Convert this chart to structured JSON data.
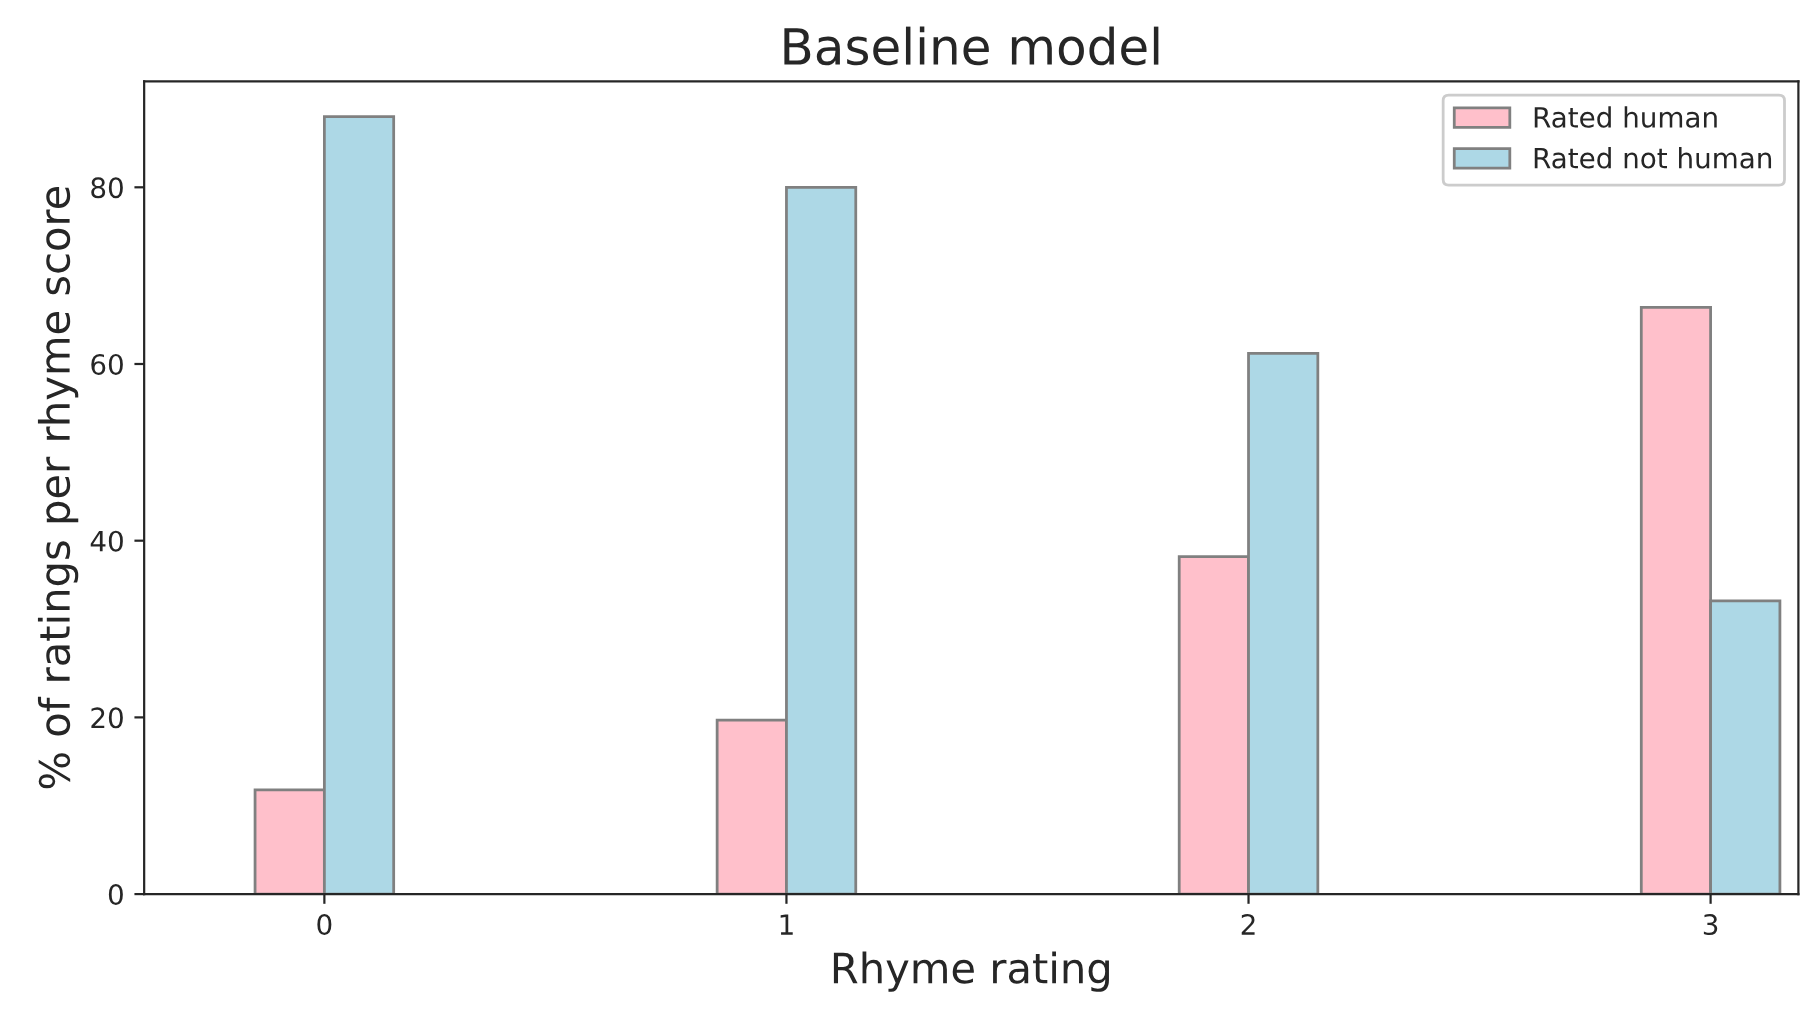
{
  "chart_data": {
    "type": "bar",
    "title": "Baseline model",
    "xlabel": "Rhyme rating",
    "ylabel": "% of ratings per rhyme score",
    "categories": [
      "0",
      "1",
      "2",
      "3"
    ],
    "series": [
      {
        "name": "Rated human",
        "color": "#ffc0cb",
        "values": [
          11.8,
          19.7,
          38.2,
          66.4
        ]
      },
      {
        "name": "Rated not human",
        "color": "#add8e6",
        "values": [
          88.0,
          80.0,
          61.2,
          33.2
        ]
      }
    ],
    "ylim": [
      0,
      92
    ],
    "yticks": [
      0,
      20,
      40,
      60,
      80
    ],
    "grid": false,
    "legend": "top right"
  }
}
